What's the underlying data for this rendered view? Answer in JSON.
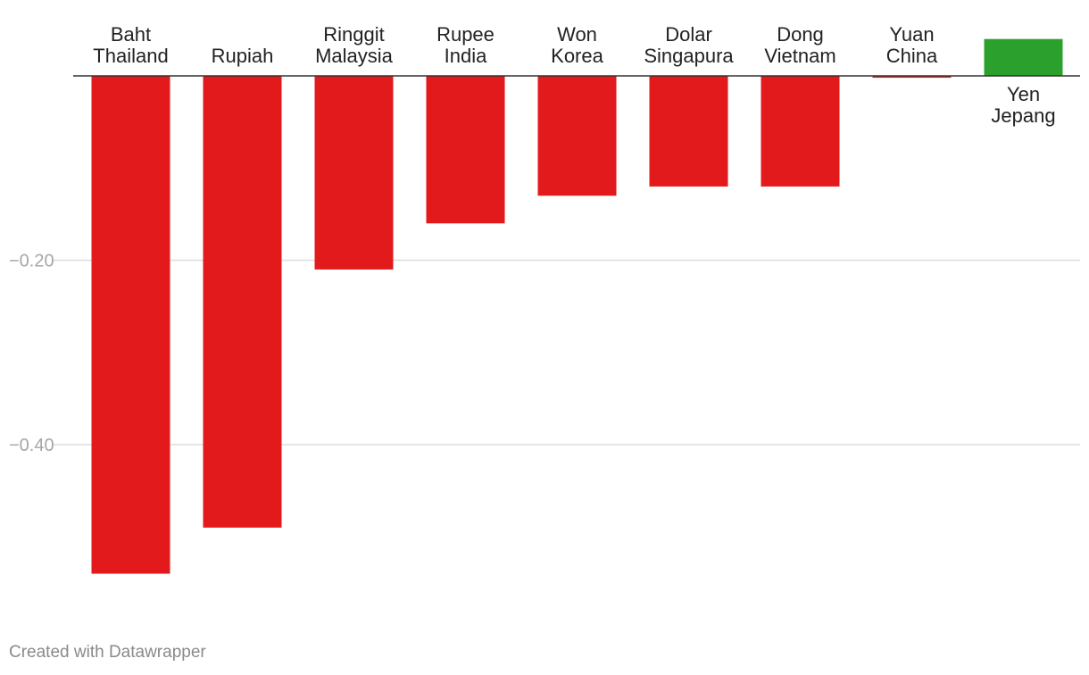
{
  "chart_data": {
    "type": "bar",
    "orientation": "vertical",
    "categories": [
      [
        "Baht",
        "Thailand"
      ],
      [
        "Rupiah"
      ],
      [
        "Ringgit",
        "Malaysia"
      ],
      [
        "Rupee",
        "India"
      ],
      [
        "Won",
        "Korea"
      ],
      [
        "Dolar",
        "Singapura"
      ],
      [
        "Dong",
        "Vietnam"
      ],
      [
        "Yuan",
        "China"
      ],
      [
        "Yen",
        "Jepang"
      ]
    ],
    "values": [
      -0.54,
      -0.49,
      -0.21,
      -0.16,
      -0.13,
      -0.12,
      -0.12,
      -0.002,
      0.04
    ],
    "ylim": [
      -0.54,
      0.04
    ],
    "yticks": [
      -0.2,
      -0.4
    ],
    "ytick_labels": [
      "−0.20",
      "−0.40"
    ],
    "grid": true,
    "colors": {
      "negative": "#e31a1c",
      "positive": "#2ca02c",
      "baseline": "#333333",
      "grid": "#dddddd"
    }
  },
  "footer": {
    "credit": "Created with Datawrapper"
  }
}
